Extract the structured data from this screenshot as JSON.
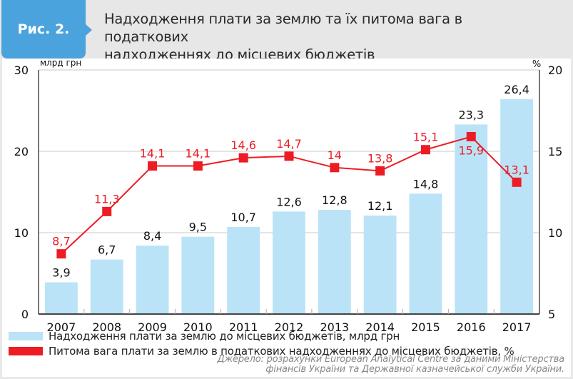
{
  "figure": {
    "label": "Рис. 2.",
    "title_line1": "Надходження плати за землю та їх питома вага в податкових",
    "title_line2": "надходженнях до місцевих бюджетів"
  },
  "colors": {
    "bar": "#bae3f7",
    "line": "#ed1c24",
    "label_accent": "#4aa3dc",
    "grid": "#c8c8c8",
    "axis": "#777777"
  },
  "chart_data": {
    "type": "bar",
    "title": "Надходження плати за землю та їх питома вага в податкових надходженнях до місцевих бюджетів",
    "categories": [
      "2007",
      "2008",
      "2009",
      "2010",
      "2011",
      "2012",
      "2013",
      "2014",
      "2015",
      "2016",
      "2017"
    ],
    "series": [
      {
        "name": "Надходження плати за землю до місцевих бюджетів, млрд грн",
        "type": "bar",
        "axis": "left",
        "values": [
          3.9,
          6.7,
          8.4,
          9.5,
          10.7,
          12.6,
          12.8,
          12.1,
          14.8,
          23.3,
          26.4
        ],
        "labels": [
          "3,9",
          "6,7",
          "8,4",
          "9,5",
          "10,7",
          "12,6",
          "12,8",
          "12,1",
          "14,8",
          "23,3",
          "26,4"
        ]
      },
      {
        "name": "Питома вага плати за землю в податкових надходженнях до місцевих бюджетів, %",
        "type": "line",
        "axis": "right",
        "values": [
          8.7,
          11.3,
          14.1,
          14.1,
          14.6,
          14.7,
          14.0,
          13.8,
          15.1,
          15.9,
          13.1
        ],
        "labels": [
          "8,7",
          "11,3",
          "14,1",
          "14,1",
          "14,6",
          "14,7",
          "14",
          "13,8",
          "15,1",
          "15,9",
          "13,1"
        ]
      }
    ],
    "ylabel_left": "млрд грн",
    "ylabel_right": "%",
    "ylim_left": [
      0,
      30
    ],
    "ylim_right": [
      5,
      20
    ],
    "yticks_left": [
      "0",
      "10",
      "20",
      "30"
    ],
    "yticks_right": [
      "5",
      "10",
      "15",
      "20"
    ],
    "grid": true,
    "legend_position": "bottom-left"
  },
  "source": {
    "line1": "Джерело: розрахунки European Analytical Centre за даними Міністерства",
    "line2": "фінансів України та Державної казначейської служби України."
  }
}
